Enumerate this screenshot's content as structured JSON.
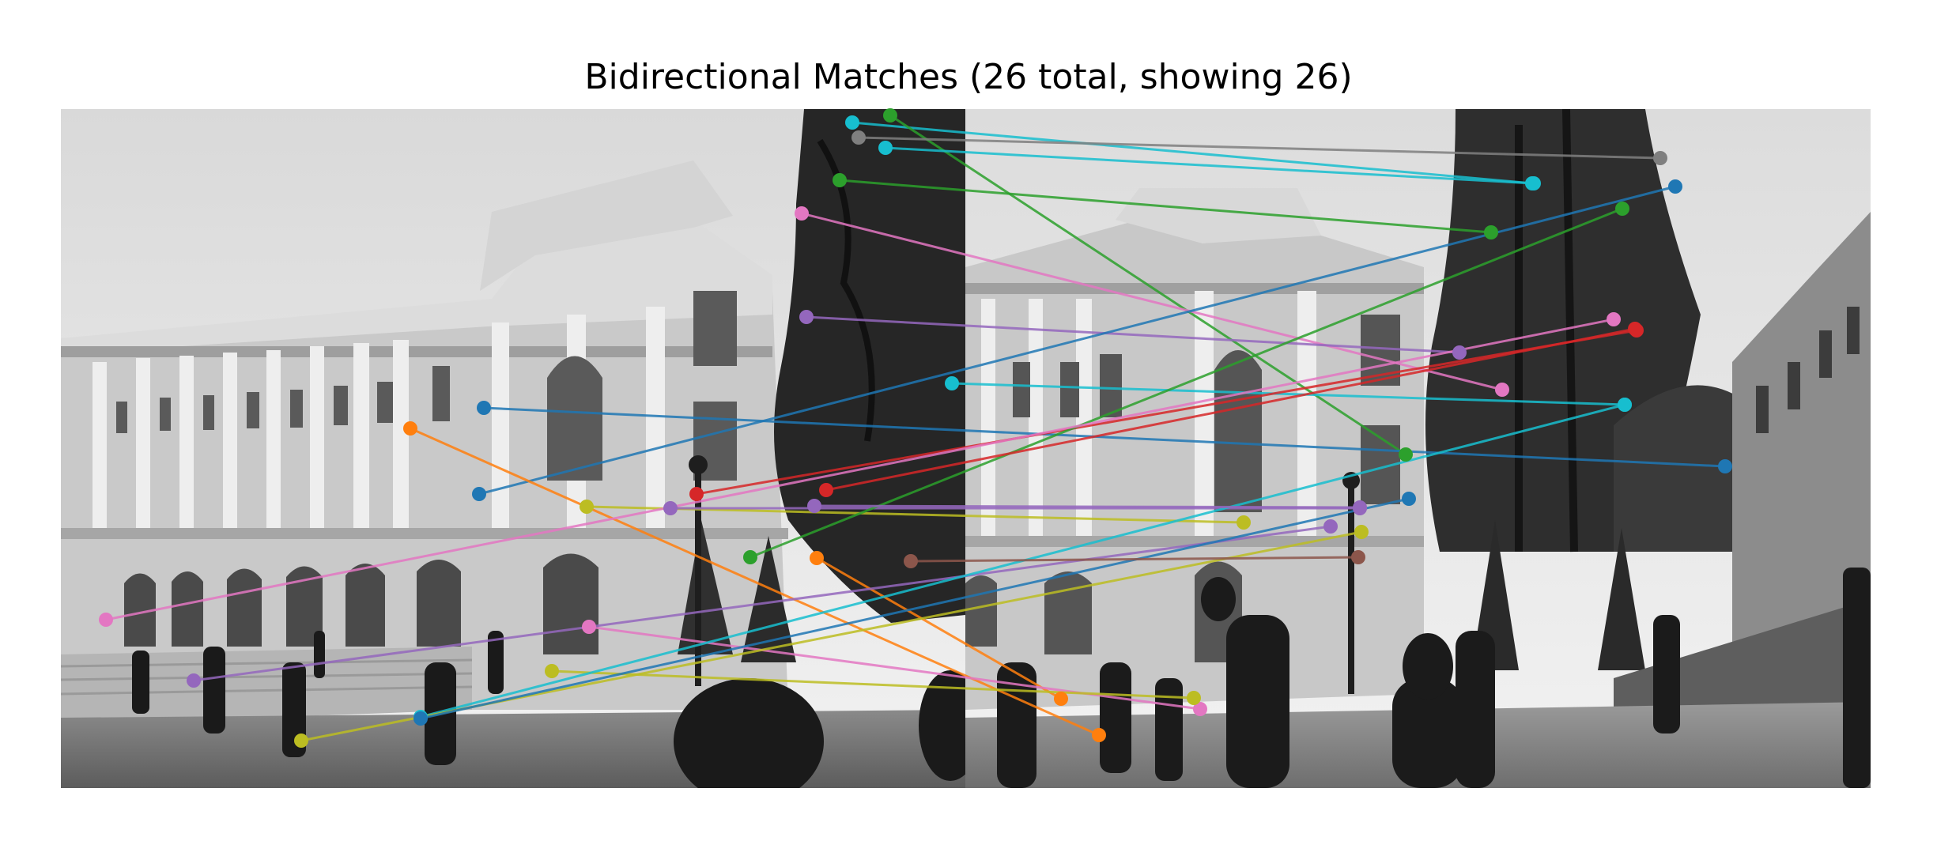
{
  "figure": {
    "title": "Bidirectional Matches (26 total, showing 26)"
  },
  "images": {
    "left": "campus-building-photo-left",
    "right": "campus-building-photo-right",
    "tone": "grayscale"
  },
  "colors": {
    "blue": "#1f77b4",
    "orange": "#ff7f0e",
    "green": "#2ca02c",
    "red": "#d62728",
    "purple": "#9467bd",
    "brown": "#8c564b",
    "pink": "#e377c2",
    "gray": "#7f7f7f",
    "olive": "#bcbd22",
    "cyan": "#17becf"
  },
  "matches": [
    {
      "color": "#17becf"
    },
    {
      "color": "#2ca02c"
    },
    {
      "color": "#7f7f7f"
    },
    {
      "color": "#17becf"
    },
    {
      "color": "#2ca02c"
    },
    {
      "color": "#e377c2"
    },
    {
      "color": "#9467bd"
    },
    {
      "color": "#17becf"
    },
    {
      "color": "#1f77b4"
    },
    {
      "color": "#ff7f0e"
    },
    {
      "color": "#1f77b4"
    },
    {
      "color": "#d62728"
    },
    {
      "color": "#bcbd22"
    },
    {
      "color": "#9467bd"
    },
    {
      "color": "#2ca02c"
    },
    {
      "color": "#ff7f0e"
    },
    {
      "color": "#e377c2"
    },
    {
      "color": "#e377c2"
    },
    {
      "color": "#9467bd"
    },
    {
      "color": "#bcbd22"
    },
    {
      "color": "#17becf"
    },
    {
      "color": "#bcbd22"
    },
    {
      "color": "#1f77b4"
    },
    {
      "color": "#d62728"
    },
    {
      "color": "#8c564b"
    },
    {
      "color": "#9467bd"
    }
  ]
}
